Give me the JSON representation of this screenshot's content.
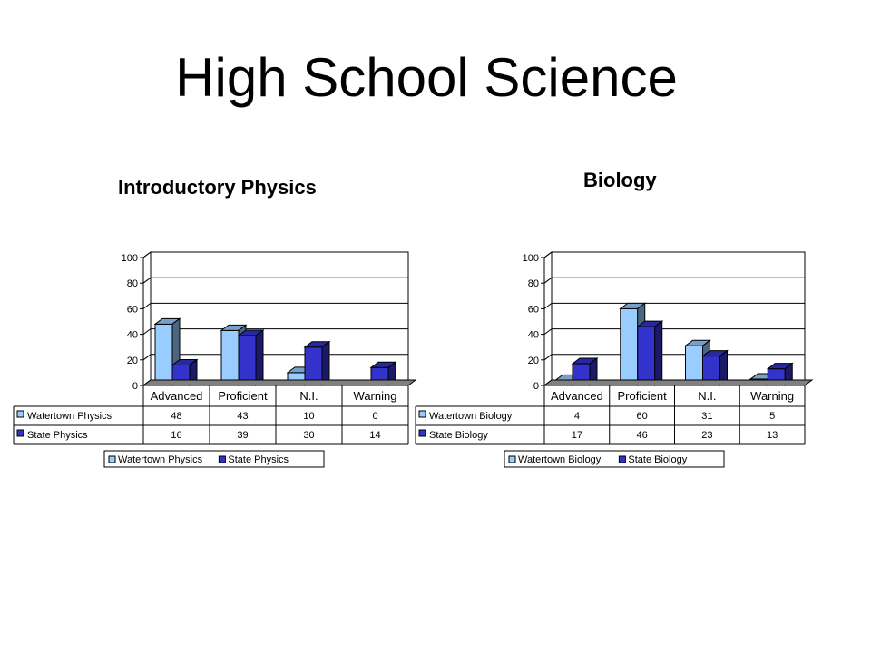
{
  "slide": {
    "title": "High School Science"
  },
  "colors": {
    "watertown": "#99ccff",
    "state": "#3333cc",
    "floor": "#808080",
    "grid": "#000000"
  },
  "chart_data": [
    {
      "type": "bar",
      "title": "Introductory Physics",
      "categories": [
        "Advanced",
        "Proficient",
        "N.I.",
        "Warning"
      ],
      "series": [
        {
          "name": "Watertown Physics",
          "values": [
            48,
            43,
            10,
            0
          ]
        },
        {
          "name": "State Physics",
          "values": [
            16,
            39,
            30,
            14
          ]
        }
      ],
      "yticks": [
        "0",
        "20",
        "40",
        "60",
        "80",
        "100"
      ],
      "ylim": [
        0,
        100
      ],
      "grid": true,
      "legend": "bottom",
      "data_table": true
    },
    {
      "type": "bar",
      "title": "Biology",
      "categories": [
        "Advanced",
        "Proficient",
        "N.I.",
        "Warning"
      ],
      "series": [
        {
          "name": "Watertown Biology",
          "values": [
            4,
            60,
            31,
            5
          ]
        },
        {
          "name": "State Biology",
          "values": [
            17,
            46,
            23,
            13
          ]
        }
      ],
      "yticks": [
        "0",
        "20",
        "40",
        "60",
        "80",
        "100"
      ],
      "ylim": [
        0,
        100
      ],
      "grid": true,
      "legend": "bottom",
      "data_table": true
    }
  ]
}
